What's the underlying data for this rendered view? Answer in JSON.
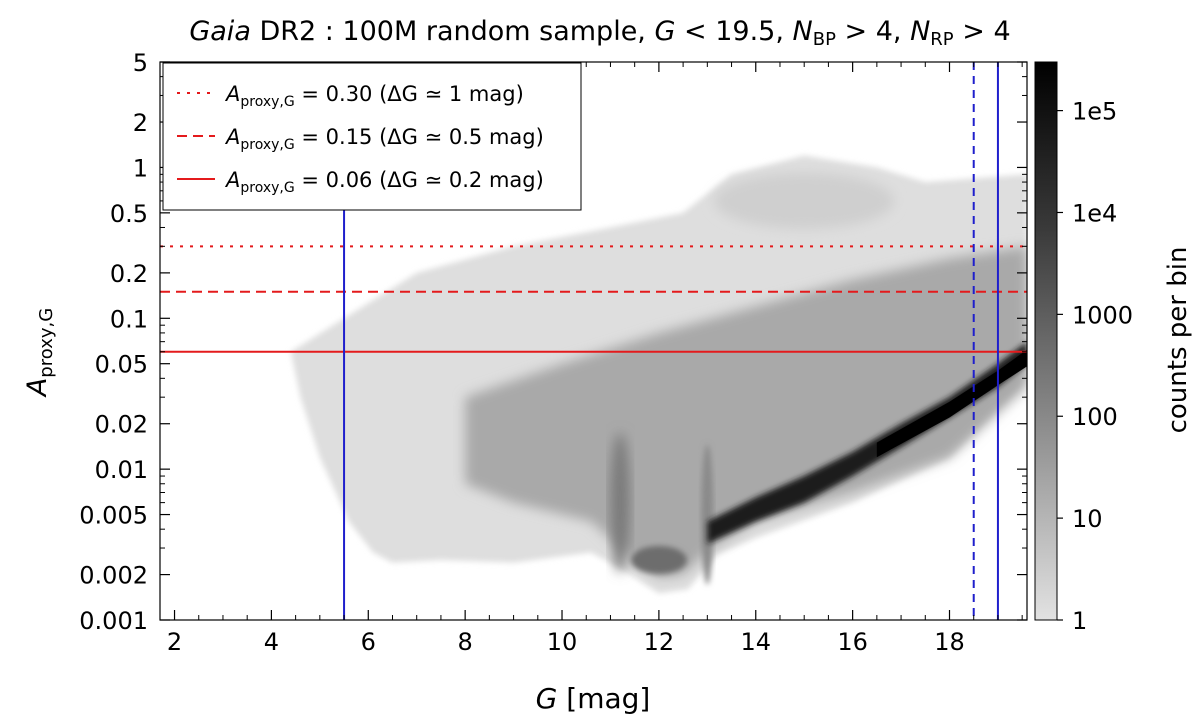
{
  "chart_data": {
    "type": "heatmap",
    "title": {
      "italic": "Gaia",
      "main": " DR2 :  100M random sample,",
      "g": "G",
      "g_cond": " < 19.5,",
      "nbp": "N",
      "nbp_sub": "BP",
      "nbp_cond": " > 4,",
      "nrp": "N",
      "nrp_sub": "RP",
      "nrp_cond": " > 4"
    },
    "xlabel": {
      "var": "G",
      "unit": "[mag]"
    },
    "ylabel": {
      "var": "A",
      "sub": "proxy,G"
    },
    "xlim": [
      1.7,
      19.6
    ],
    "ylim": [
      0.001,
      5
    ],
    "yscale": "log",
    "xticks": [
      2,
      4,
      6,
      8,
      10,
      12,
      14,
      16,
      18
    ],
    "yticks": [
      {
        "value": 0.001,
        "label": "0.001"
      },
      {
        "value": 0.002,
        "label": "0.002"
      },
      {
        "value": 0.005,
        "label": "0.005"
      },
      {
        "value": 0.01,
        "label": "0.01"
      },
      {
        "value": 0.02,
        "label": "0.02"
      },
      {
        "value": 0.05,
        "label": "0.05"
      },
      {
        "value": 0.1,
        "label": "0.1"
      },
      {
        "value": 0.2,
        "label": "0.2"
      },
      {
        "value": 0.5,
        "label": "0.5"
      },
      {
        "value": 1,
        "label": "1"
      },
      {
        "value": 2,
        "label": "2"
      },
      {
        "value": 5,
        "label": "5"
      }
    ],
    "hlines": [
      {
        "y": 0.3,
        "color": "#e41a1c",
        "style": "dotted",
        "label": "= 0.30  (ΔG ≃ 1 mag)"
      },
      {
        "y": 0.15,
        "color": "#e41a1c",
        "style": "dashed",
        "label": "= 0.15  (ΔG ≃ 0.5 mag)"
      },
      {
        "y": 0.06,
        "color": "#e41a1c",
        "style": "solid",
        "label": "= 0.06  (ΔG ≃ 0.2 mag)"
      }
    ],
    "legend_symbol": {
      "var": "A",
      "sub": "proxy,G"
    },
    "vlines": [
      {
        "x": 5.5,
        "color": "#1f1fcc",
        "style": "solid"
      },
      {
        "x": 18.5,
        "color": "#1f1fcc",
        "style": "dashed"
      },
      {
        "x": 19.0,
        "color": "#1f1fcc",
        "style": "solid"
      }
    ],
    "legend_position": "top-left",
    "colorbar": {
      "label": "counts per bin",
      "scale": "log",
      "range": [
        1,
        300000
      ],
      "ticks": [
        {
          "value": 1,
          "label": "1"
        },
        {
          "value": 10,
          "label": "10"
        },
        {
          "value": 100,
          "label": "100"
        },
        {
          "value": 1000,
          "label": "1000"
        },
        {
          "value": 10000,
          "label": "1e4"
        },
        {
          "value": 100000,
          "label": "1e5"
        }
      ]
    },
    "density_features": [
      {
        "name": "main-sequence-ridge",
        "g_range": [
          13,
          19.6
        ],
        "a_range": [
          0.0025,
          0.06
        ],
        "peak_counts": 200000
      },
      {
        "name": "red-clump-branch",
        "g_center": 11.2,
        "a_range": [
          0.0015,
          0.03
        ],
        "peak_counts": 500
      },
      {
        "name": "second-branch",
        "g_center": 13.0,
        "a_range": [
          0.002,
          0.02
        ],
        "peak_counts": 1000
      },
      {
        "name": "variable-star-cloud",
        "g_range": [
          12.5,
          17.5
        ],
        "a_range": [
          0.3,
          1.5
        ],
        "peak_counts": 10
      }
    ]
  }
}
